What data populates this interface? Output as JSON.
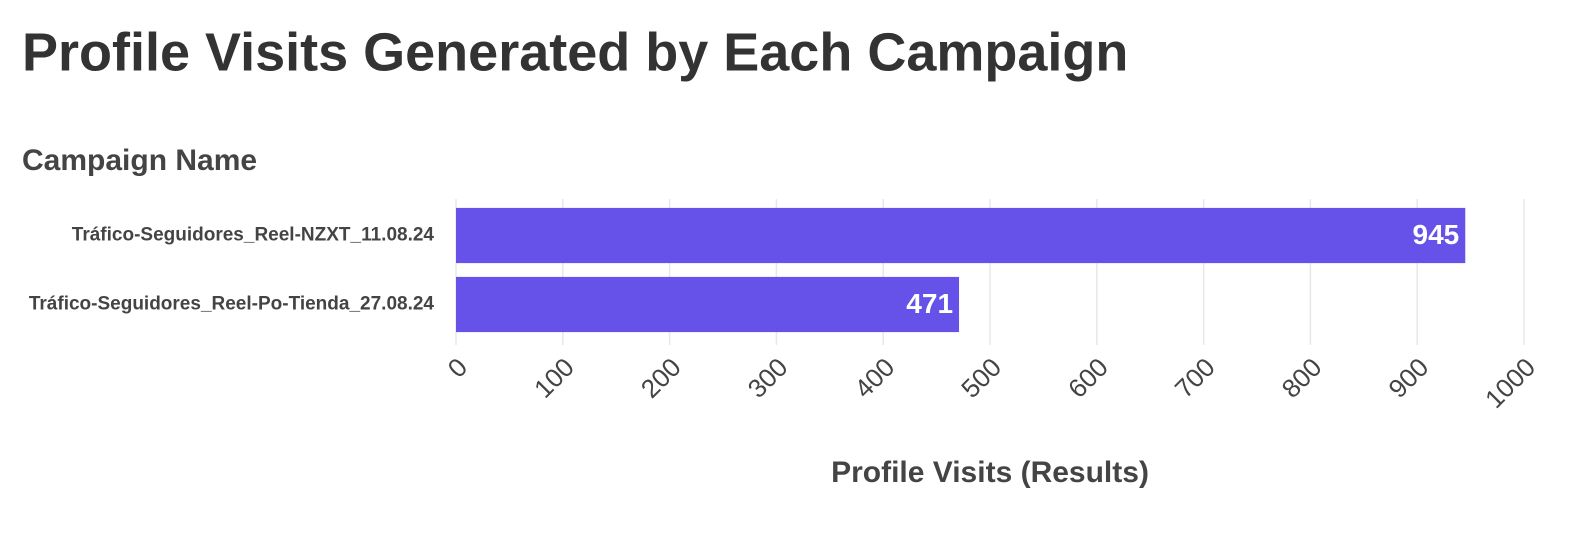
{
  "chart_data": {
    "type": "bar",
    "title": "Profile Visits Generated by Each Campaign",
    "y_label": "Campaign Name",
    "x_label": "Profile Visits (Results)",
    "categories": [
      "Tráfico-Seguidores_Reel-NZXT_11.08.24",
      "Tráfico-Seguidores_Reel-Po-Tienda_27.08.24"
    ],
    "values": [
      945,
      471
    ],
    "color": "#6652e8",
    "xlim": [
      0,
      1000
    ],
    "xticks": [
      0,
      100,
      200,
      300,
      400,
      500,
      600,
      700,
      800,
      900,
      1000
    ],
    "grid": true
  }
}
